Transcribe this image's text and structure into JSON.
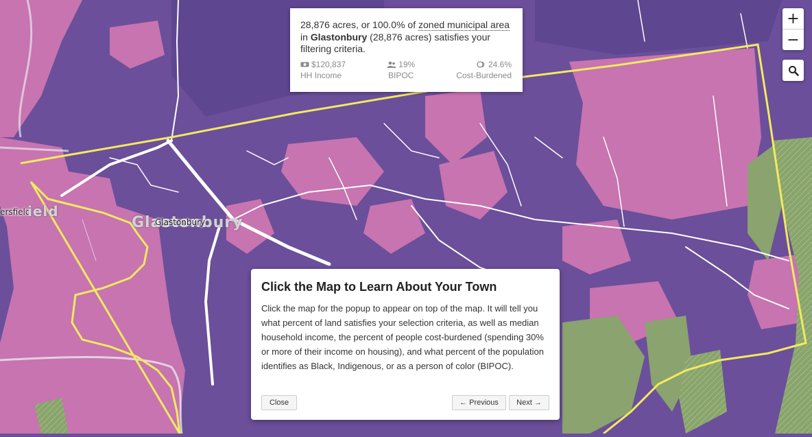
{
  "map": {
    "town_name_large": "Glastonbury",
    "town_name_small": "Glastonbury",
    "neighbor_label": "ersfield",
    "neighbor_label_large": "ield",
    "colors": {
      "purple": "#6b4f9a",
      "pink": "#c774b0",
      "green": "#8aa36f",
      "boundary": "#f3ea5f",
      "road": "#ffffff"
    }
  },
  "info_box": {
    "acres": "28,876 acres, or 100.0% of",
    "zoned_link": "zoned municipal area",
    "in_text": "in",
    "town": "Glastonbury",
    "total": "(28,876 acres) satisfies your filtering criteria.",
    "stats": [
      {
        "icon": "money-icon",
        "value": "$120,837",
        "label": "HH Income"
      },
      {
        "icon": "people-icon",
        "value": "19%",
        "label": "BIPOC"
      },
      {
        "icon": "coins-icon",
        "value": "24.6%",
        "label": "Cost-Burdened"
      }
    ]
  },
  "controls": {
    "zoom_in": "+",
    "zoom_out": "−"
  },
  "tour": {
    "title": "Click the Map to Learn About Your Town",
    "body": "Click the map for the popup to appear on top of the map. It will tell you what percent of land satisfies your selection criteria, as well as median household income, the percent of people cost-burdened (spending 30% or more of their income on housing), and what percent of the population identifies as Black, Indigenous, or as a person of color (BIPOC).",
    "close_label": "Close",
    "previous_label": "← Previous",
    "next_label": "Next →"
  }
}
